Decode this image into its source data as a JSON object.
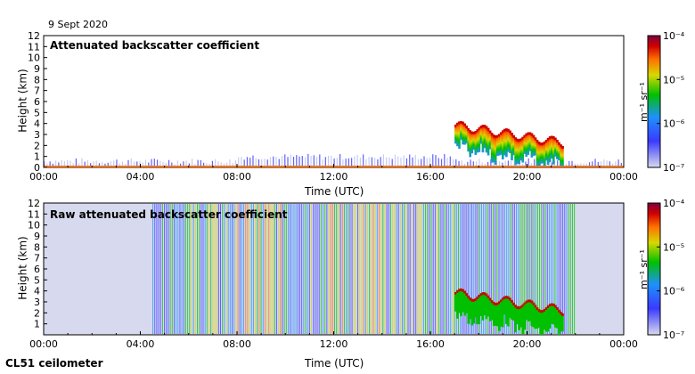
{
  "date_label": "9 Sept 2020",
  "footer_label": "CL51 ceilometer",
  "colors": {
    "scale": [
      "#d7d9ee",
      "#3a3aff",
      "#1e90ff",
      "#00c000",
      "#d8d800",
      "#ff7000",
      "#d00000",
      "#800040"
    ]
  },
  "chart_data": [
    {
      "type": "heatmap",
      "title": "Attenuated backscatter coefficient",
      "xlabel": "Time (UTC)",
      "ylabel": "Height (km)",
      "x_ticks": [
        "00:00",
        "04:00",
        "08:00",
        "12:00",
        "16:00",
        "20:00",
        "00:00"
      ],
      "y_ticks": [
        "0",
        "1",
        "2",
        "3",
        "4",
        "5",
        "6",
        "7",
        "8",
        "9",
        "10",
        "11",
        "12"
      ],
      "xlim_hours": [
        0,
        24
      ],
      "ylim_km": [
        0,
        12
      ],
      "colorbar": {
        "label": "m⁻¹ sr⁻¹",
        "scale": "log",
        "range": [
          1e-07,
          0.0001
        ],
        "tick_labels": [
          "10⁻⁴",
          "10⁻⁵",
          "10⁻⁶",
          "10⁻⁷"
        ]
      },
      "features": {
        "low_layer": {
          "hours": [
            0,
            24
          ],
          "top_km": 0.6
        },
        "cloud_layer": {
          "hours": [
            17.0,
            21.5
          ],
          "height_km": [
            3.9,
            2.3
          ]
        }
      }
    },
    {
      "type": "heatmap",
      "title": "Raw attenuated backscatter coefficient",
      "xlabel": "Time (UTC)",
      "ylabel": "Height (km)",
      "x_ticks": [
        "00:00",
        "04:00",
        "08:00",
        "12:00",
        "16:00",
        "20:00",
        "00:00"
      ],
      "y_ticks": [
        "1",
        "2",
        "3",
        "4",
        "5",
        "6",
        "7",
        "8",
        "9",
        "10",
        "11",
        "12"
      ],
      "xlim_hours": [
        0,
        24
      ],
      "ylim_km": [
        0,
        12
      ],
      "colorbar": {
        "label": "m⁻¹ sr⁻¹",
        "scale": "log",
        "range": [
          1e-07,
          0.0001
        ],
        "tick_labels": [
          "10⁻⁴",
          "10⁻⁵",
          "10⁻⁶",
          "10⁻⁷"
        ]
      },
      "features": {
        "noise_region": {
          "hours": [
            4.5,
            22.0
          ]
        },
        "cloud_layer": {
          "hours": [
            17.0,
            21.5
          ],
          "height_km": [
            3.9,
            2.3
          ]
        }
      }
    }
  ]
}
